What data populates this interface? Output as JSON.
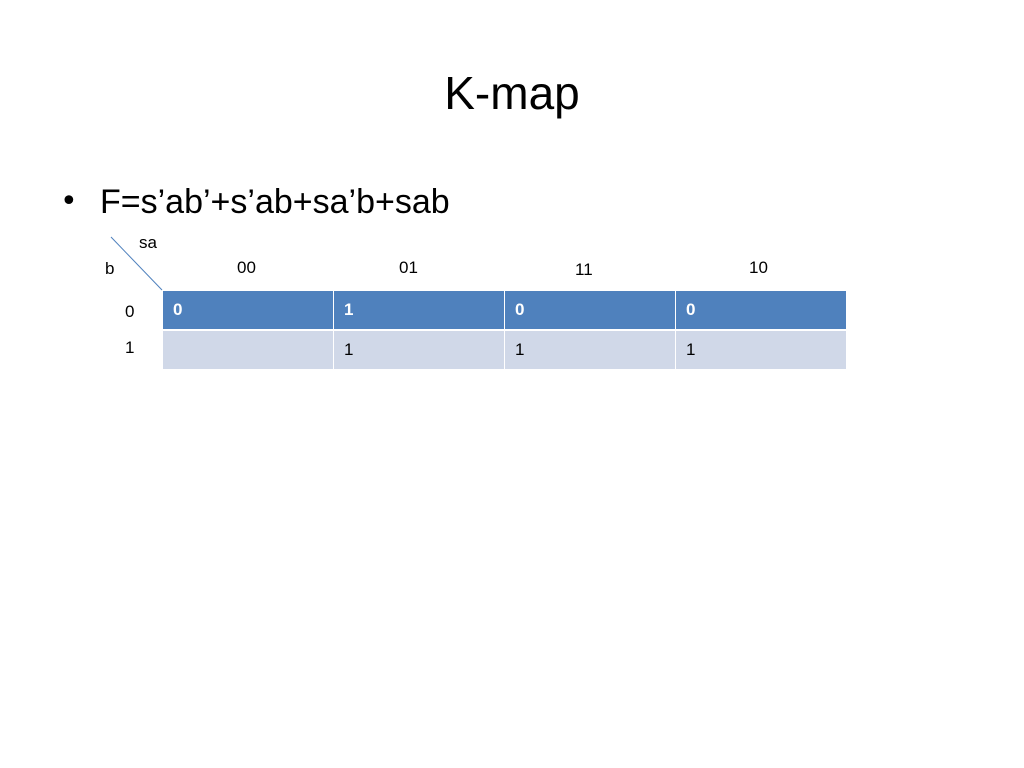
{
  "header": {
    "title": "K-map"
  },
  "bullets": [
    "F=s’ab’+s’ab+sa’b+sab"
  ],
  "kmap": {
    "column_variable": "sa",
    "row_variable": "b",
    "column_headers": [
      "00",
      "01",
      "11",
      "10"
    ],
    "row_headers": [
      "0",
      "1"
    ],
    "rows": [
      [
        "0",
        "1",
        "0",
        "0"
      ],
      [
        null,
        "1",
        "1",
        "1"
      ]
    ]
  }
}
